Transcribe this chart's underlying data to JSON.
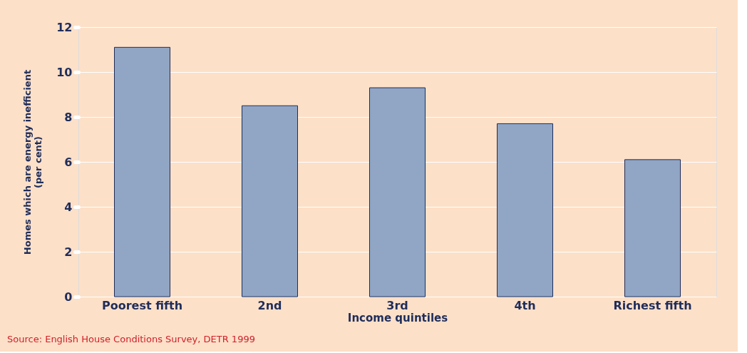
{
  "chart_data": {
    "type": "bar",
    "xlabel": "Income quintiles",
    "ylabel": "Homes which are energy inefficient\n(per cent)",
    "categories": [
      "Poorest fifth",
      "2nd",
      "3rd",
      "4th",
      "Richest fifth"
    ],
    "values": [
      11.1,
      8.5,
      9.3,
      7.7,
      6.1
    ],
    "color": "#91a6c4",
    "ylim": [
      0,
      12
    ],
    "yticks": [
      0,
      2,
      4,
      6,
      8,
      10,
      12
    ],
    "grid": "y",
    "annotations": [
      "Source: English House Conditions Survey, DETR 1999"
    ]
  }
}
